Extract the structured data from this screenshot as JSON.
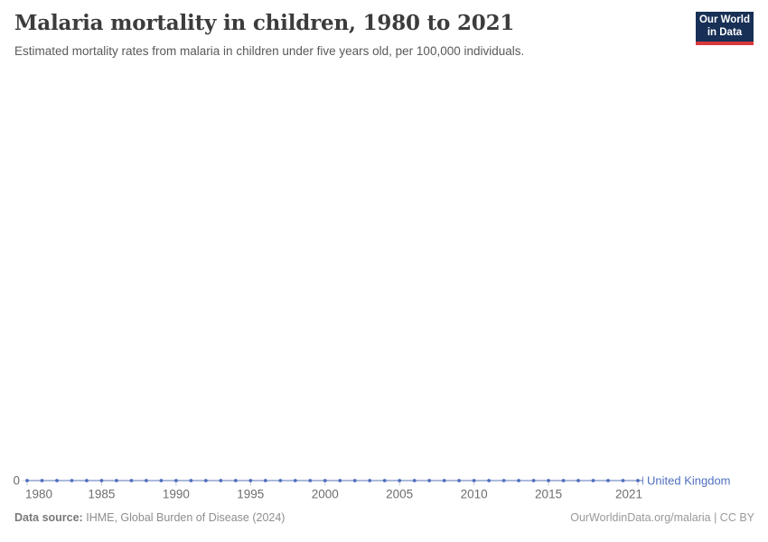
{
  "header": {
    "title": "Malaria mortality in children, 1980 to 2021",
    "subtitle": "Estimated mortality rates from malaria in children under five years old, per 100,000 individuals."
  },
  "logo": {
    "line1": "Our World",
    "line2": "in Data",
    "bg_color": "#183056",
    "stripe_color": "#d9383e"
  },
  "chart_data": {
    "type": "line",
    "title": "Malaria mortality in children, 1980 to 2021",
    "xlabel": "",
    "ylabel": "",
    "grid": false,
    "legend_position": "end-of-line",
    "x": [
      1980,
      1981,
      1982,
      1983,
      1984,
      1985,
      1986,
      1987,
      1988,
      1989,
      1990,
      1991,
      1992,
      1993,
      1994,
      1995,
      1996,
      1997,
      1998,
      1999,
      2000,
      2001,
      2002,
      2003,
      2004,
      2005,
      2006,
      2007,
      2008,
      2009,
      2010,
      2011,
      2012,
      2013,
      2014,
      2015,
      2016,
      2017,
      2018,
      2019,
      2020,
      2021
    ],
    "series": [
      {
        "name": "United Kingdom",
        "color": "#4f6fbe",
        "values": [
          0,
          0,
          0,
          0,
          0,
          0,
          0,
          0,
          0,
          0,
          0,
          0,
          0,
          0,
          0,
          0,
          0,
          0,
          0,
          0,
          0,
          0,
          0,
          0,
          0,
          0,
          0,
          0,
          0,
          0,
          0,
          0,
          0,
          0,
          0,
          0,
          0,
          0,
          0,
          0,
          0,
          0
        ]
      }
    ],
    "xticks": [
      1980,
      1985,
      1990,
      1995,
      2000,
      2005,
      2010,
      2015,
      2021
    ],
    "yticks": [
      "0"
    ],
    "ylim": [
      0,
      1
    ],
    "xlim": [
      1980,
      2021
    ]
  },
  "footer": {
    "source_label": "Data source:",
    "source_text": "IHME, Global Burden of Disease (2024)",
    "right_text": "OurWorldinData.org/malaria | CC BY"
  }
}
